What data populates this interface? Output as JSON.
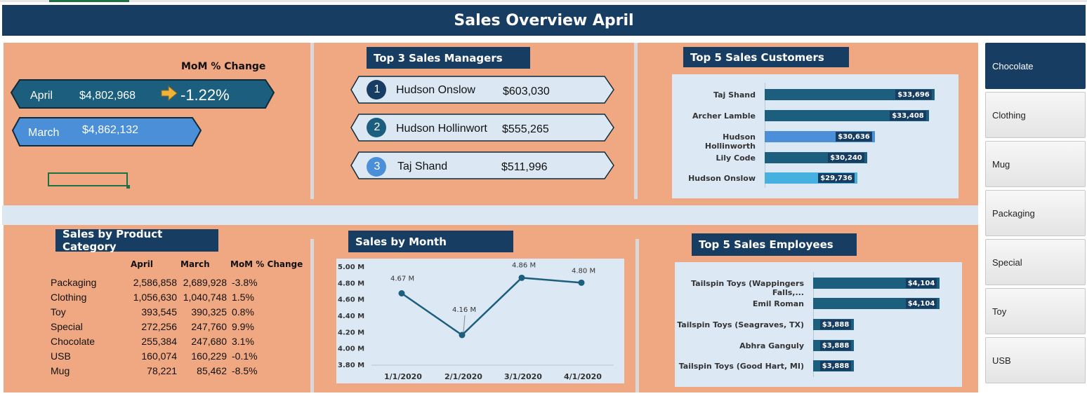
{
  "header": {
    "title": "Sales Overview April"
  },
  "mom": {
    "title": "MoM % Change",
    "april_label": "April",
    "april_value": "$4,802,968",
    "change": "-1.22%",
    "march_label": "March",
    "march_value": "$4,862,132"
  },
  "managers": {
    "title": "Top 3 Sales Managers",
    "items": [
      {
        "rank": "1",
        "name": "Hudson Onslow",
        "value": "$603,030"
      },
      {
        "rank": "2",
        "name": "Hudson Hollinwort",
        "value": "$555,265"
      },
      {
        "rank": "3",
        "name": "Taj Shand",
        "value": "$511,996"
      }
    ]
  },
  "customers": {
    "title": "Top 5 Sales Customers",
    "chart_data": {
      "type": "bar",
      "categories": [
        "Taj Shand",
        "Archer Lamble",
        "Hudson Hollinworth",
        "Lily Code",
        "Hudson Onslow"
      ],
      "values": [
        33696,
        33408,
        30636,
        30240,
        29736
      ],
      "labels": [
        "$33,696",
        "$33,408",
        "$30,636",
        "$30,240",
        "$29,736"
      ],
      "colors": [
        "#1b5e7e",
        "#1b5e7e",
        "#4a8fd8",
        "#1b5e7e",
        "#46b0e0"
      ]
    }
  },
  "categories": {
    "title": "Sales by Product Category",
    "headers": [
      "April",
      "March",
      "MoM % Change"
    ],
    "rows": [
      {
        "name": "Packaging",
        "april": "2,586,858",
        "march": "2,689,928",
        "change": "-3.8%"
      },
      {
        "name": "Clothing",
        "april": "1,056,630",
        "march": "1,040,748",
        "change": "1.5%"
      },
      {
        "name": "Toy",
        "april": "393,545",
        "march": "390,325",
        "change": "0.8%"
      },
      {
        "name": "Special",
        "april": "272,256",
        "march": "247,760",
        "change": "9.9%"
      },
      {
        "name": "Chocolate",
        "april": "255,384",
        "march": "247,680",
        "change": "3.1%"
      },
      {
        "name": "USB",
        "april": "160,074",
        "march": "160,229",
        "change": "-0.1%"
      },
      {
        "name": "Mug",
        "april": "78,221",
        "march": "85,462",
        "change": "-8.5%"
      }
    ]
  },
  "by_month": {
    "title": "Sales by Month",
    "chart_data": {
      "type": "line",
      "x": [
        "1/1/2020",
        "2/1/2020",
        "3/1/2020",
        "4/1/2020"
      ],
      "values": [
        4.67,
        4.16,
        4.86,
        4.8
      ],
      "labels": [
        "4.67 M",
        "4.16 M",
        "4.86 M",
        "4.80 M"
      ],
      "ylim": [
        3.8,
        5.0
      ],
      "yticks": [
        "5.00 M",
        "4.80 M",
        "4.60 M",
        "4.40 M",
        "4.20 M",
        "4.00 M",
        "3.80 M"
      ],
      "color": "#1b5e7e"
    }
  },
  "employees": {
    "title": "Top 5 Sales Employees",
    "chart_data": {
      "type": "bar",
      "categories": [
        "Tailspin Toys (Wappingers Falls,...",
        "Emil Roman",
        "Tailspin Toys (Seagraves, TX)",
        "Abhra Ganguly",
        "Tailspin Toys (Good Hart, MI)"
      ],
      "values": [
        4104,
        4104,
        3888,
        3888,
        3888
      ],
      "labels": [
        "$4,104",
        "$4,104",
        "$3,888",
        "$3,888",
        "$3,888"
      ],
      "color": "#1b5e7e"
    }
  },
  "slicer": {
    "items": [
      "Chocolate",
      "Clothing",
      "Mug",
      "Packaging",
      "Special",
      "Toy",
      "USB"
    ],
    "selected": "Chocolate"
  }
}
